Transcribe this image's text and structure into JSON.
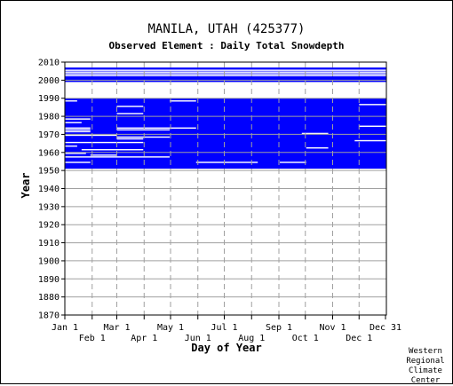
{
  "header": {
    "title": "MANILA, UTAH   (425377)",
    "subtitle": "Observed Element : Daily Total Snowdepth"
  },
  "credit": {
    "lines": [
      "Western",
      "Regional",
      "Climate",
      "Center"
    ]
  },
  "colors": {
    "data": "#0000ff",
    "grid": "#a0a0a0",
    "axis": "#000000",
    "background": "#ffffff"
  },
  "chart_data": {
    "type": "heatmap",
    "title": "Observed Element : Daily Total Snowdepth",
    "xlabel": "Day of Year",
    "ylabel": "Year",
    "xlim": [
      1,
      366
    ],
    "ylim": [
      1870,
      2010
    ],
    "grid": true,
    "x_ticks_top": [
      {
        "label": "Jan 1",
        "day": 1
      },
      {
        "label": "Mar 1",
        "day": 60
      },
      {
        "label": "May 1",
        "day": 121
      },
      {
        "label": "Jul 1",
        "day": 182
      },
      {
        "label": "Sep 1",
        "day": 244
      },
      {
        "label": "Nov 1",
        "day": 305
      },
      {
        "label": "Dec 31",
        "day": 365
      }
    ],
    "x_ticks_bottom": [
      {
        "label": "Feb 1",
        "day": 32
      },
      {
        "label": "Apr 1",
        "day": 91
      },
      {
        "label": "Jun 1",
        "day": 152
      },
      {
        "label": "Aug 1",
        "day": 213
      },
      {
        "label": "Oct 1",
        "day": 274
      },
      {
        "label": "Dec 1",
        "day": 335
      }
    ],
    "y_ticks": [
      1870,
      1880,
      1890,
      1900,
      1910,
      1920,
      1930,
      1940,
      1950,
      1960,
      1970,
      1980,
      1990,
      2000,
      2010
    ],
    "observed_year_ranges": [
      [
        1951,
        1989
      ],
      [
        1999,
        2006
      ]
    ],
    "gaps": [
      {
        "year": 1954,
        "from": 1,
        "to": 30
      },
      {
        "year": 1954,
        "from": 150,
        "to": 220
      },
      {
        "year": 1954,
        "from": 245,
        "to": 275
      },
      {
        "year": 1957,
        "from": 1,
        "to": 120
      },
      {
        "year": 1958,
        "from": 30,
        "to": 60
      },
      {
        "year": 1959,
        "from": 1,
        "to": 25
      },
      {
        "year": 1961,
        "from": 20,
        "to": 90
      },
      {
        "year": 1962,
        "from": 275,
        "to": 300
      },
      {
        "year": 1963,
        "from": 1,
        "to": 15
      },
      {
        "year": 1965,
        "from": 1,
        "to": 90
      },
      {
        "year": 1966,
        "from": 330,
        "to": 366
      },
      {
        "year": 1967,
        "from": 60,
        "to": 90
      },
      {
        "year": 1968,
        "from": 60,
        "to": 120
      },
      {
        "year": 1969,
        "from": 1,
        "to": 60
      },
      {
        "year": 1970,
        "from": 270,
        "to": 300
      },
      {
        "year": 1971,
        "from": 1,
        "to": 30
      },
      {
        "year": 1972,
        "from": 1,
        "to": 30
      },
      {
        "year": 1972,
        "from": 60,
        "to": 120
      },
      {
        "year": 1973,
        "from": 1,
        "to": 30
      },
      {
        "year": 1973,
        "from": 60,
        "to": 120
      },
      {
        "year": 1973,
        "from": 120,
        "to": 150
      },
      {
        "year": 1974,
        "from": 335,
        "to": 366
      },
      {
        "year": 1976,
        "from": 1,
        "to": 20
      },
      {
        "year": 1978,
        "from": 1,
        "to": 30
      },
      {
        "year": 1981,
        "from": 60,
        "to": 90
      },
      {
        "year": 1985,
        "from": 60,
        "to": 90
      },
      {
        "year": 1986,
        "from": 335,
        "to": 366
      },
      {
        "year": 1988,
        "from": 1,
        "to": 15
      },
      {
        "year": 1988,
        "from": 120,
        "to": 150
      },
      {
        "year": 2002,
        "from": 1,
        "to": 366
      },
      {
        "year": 2003,
        "from": 1,
        "to": 366
      },
      {
        "year": 2004,
        "from": 1,
        "to": 366
      },
      {
        "year": 2005,
        "from": 1,
        "to": 366
      }
    ]
  }
}
